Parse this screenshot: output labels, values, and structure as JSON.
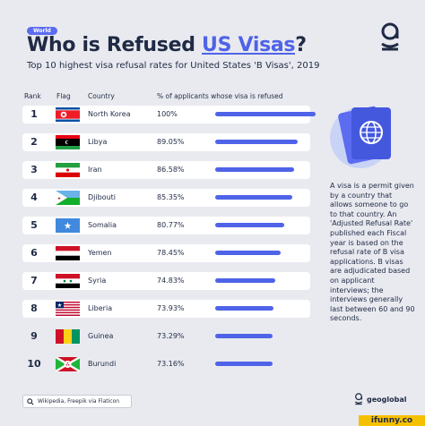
{
  "badge": "World",
  "title_pre": "Who is Refused ",
  "title_highlight": "US Visas",
  "title_post": "?",
  "subtitle": "Top 10 highest visa refusal rates for United States 'B Visas', 2019",
  "headers": {
    "rank": "Rank",
    "flag": "Flag",
    "country": "Country",
    "pct": "% of applicants whose visa is refused"
  },
  "chart_data": {
    "type": "bar",
    "title": "Who is Refused US Visas?",
    "subtitle": "Top 10 highest visa refusal rates for United States 'B Visas', 2019",
    "categories": [
      "North Korea",
      "Libya",
      "Iran",
      "Djibouti",
      "Somalia",
      "Yemen",
      "Syria",
      "Liberia",
      "Guinea",
      "Burundi"
    ],
    "values": [
      100,
      89.05,
      86.58,
      85.35,
      80.77,
      78.45,
      74.83,
      73.93,
      73.29,
      73.16
    ],
    "labels": [
      "100%",
      "89.05%",
      "86.58%",
      "85.35%",
      "80.77%",
      "78.45%",
      "74.83%",
      "73.93%",
      "73.29%",
      "73.16%"
    ],
    "ranks": [
      "1",
      "2",
      "3",
      "4",
      "5",
      "6",
      "7",
      "8",
      "9",
      "10"
    ],
    "flags": [
      "north-korea-flag-icon",
      "libya-flag-icon",
      "iran-flag-icon",
      "djibouti-flag-icon",
      "somalia-flag-icon",
      "yemen-flag-icon",
      "syria-flag-icon",
      "liberia-flag-icon",
      "guinea-flag-icon",
      "burundi-flag-icon"
    ],
    "ylim": [
      0,
      100
    ],
    "bar_color": "#4f63e8"
  },
  "side_text": "A visa is a permit given by a country that allows someone to go to that country. An 'Adjusted Refusal Rate' published each Fiscal year is based on the refusal rate of B visa applications. B visas are adjudicated based on applicant interviews; the interviews generally last between 60 and 90 seconds.",
  "footer": {
    "icon": "search-icon",
    "text": "Wikipedia, Freepik via Flaticon"
  },
  "brand": "geoglobal",
  "watermark": "ifunny.co",
  "colors": {
    "accent": "#4f63e8",
    "text": "#1f2a44",
    "background": "#e9eaf0"
  }
}
